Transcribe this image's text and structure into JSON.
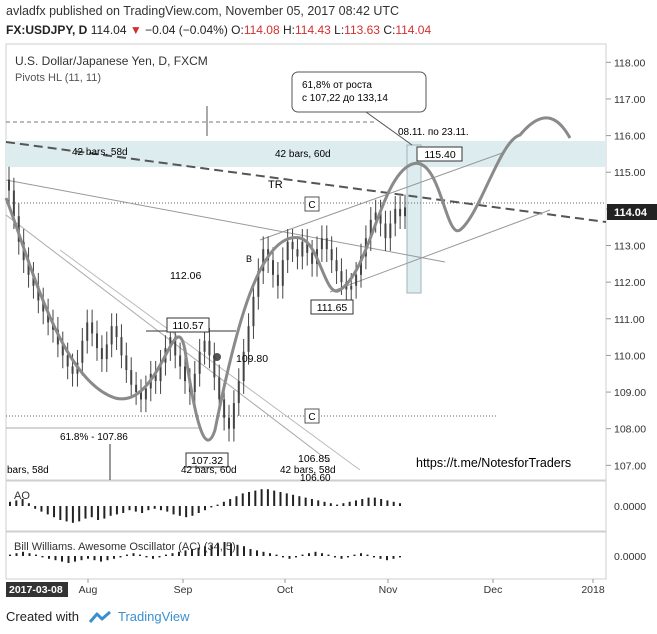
{
  "header": {
    "user": "avladfx",
    "published_text": "published on TradingView.com, November 05, 2017 08:42 UTC",
    "symbol": "FX:USDJPY, D",
    "last": "114.04",
    "change": "−0.04 (−0.04%)",
    "open_label": "O:",
    "open": "114.08",
    "high_label": "H:",
    "high": "114.43",
    "low_label": "L:",
    "low": "113.63",
    "close_label": "C:",
    "close": "114.04"
  },
  "colors": {
    "down": "#d32f2f",
    "candle": "#444444",
    "path": "#8a8a8a",
    "zone": "#dcecef",
    "brand": "#3a8fd1",
    "price_tag": "#222222"
  },
  "footer": {
    "created_with": "Created with",
    "brand": "TradingView"
  },
  "chart_data": {
    "type": "candlestick",
    "title": "U.S. Dollar/Japanese Yen, D, FXCM",
    "indicator": "Pivots HL (11, 11)",
    "ylim": [
      106.6,
      118.5
    ],
    "y_ticks": [
      "118.00",
      "117.00",
      "116.00",
      "115.00",
      "114.00",
      "113.00",
      "112.00",
      "111.00",
      "110.00",
      "109.00",
      "108.00",
      "107.00"
    ],
    "x_ticks": [
      "Aug",
      "Sep",
      "Oct",
      "Nov",
      "Dec",
      "2018"
    ],
    "x_axis_start_label": "2017-03-08",
    "last_price_tag": "114.04",
    "candle_closes": [
      114.5,
      113.8,
      113.1,
      112.6,
      112.2,
      111.9,
      111.5,
      111.2,
      110.9,
      110.7,
      110.3,
      110.0,
      109.7,
      109.5,
      109.8,
      110.4,
      110.9,
      110.6,
      110.2,
      109.9,
      110.3,
      110.8,
      110.5,
      110.0,
      109.6,
      109.2,
      109.0,
      108.8,
      109.1,
      109.5,
      109.3,
      109.8,
      110.2,
      110.5,
      110.0,
      109.7,
      109.3,
      109.0,
      109.5,
      110.1,
      110.4,
      110.0,
      109.4,
      108.8,
      108.3,
      108.0,
      108.7,
      109.3,
      110.1,
      110.8,
      111.6,
      112.3,
      112.9,
      112.6,
      112.2,
      111.9,
      112.6,
      113.1,
      112.9,
      112.7,
      113.1,
      112.8,
      112.5,
      112.9,
      113.2,
      112.9,
      112.6,
      112.3,
      112.0,
      111.8,
      111.9,
      112.2,
      112.7,
      113.2,
      113.7,
      113.9,
      113.6,
      113.2,
      113.6,
      114.0,
      113.8,
      114.04
    ],
    "pivot_labels": [
      "110.57",
      "109.80",
      "112.06",
      "107.32",
      "111.65",
      "115.40",
      "106.85"
    ],
    "annotations": {
      "fib_note_line1": "61,8% от роста",
      "fib_note_line2": "с 107,22 до 133,14",
      "range_label": "08.11. по 23.11.",
      "bars_58_left": "42 bars, 58d",
      "bars_60_top": "42 bars, 60d",
      "bars_60_bottom": "42 bars, 60d",
      "bars_58_bottom": "42 bars, 58d",
      "bars_58_edge": "bars, 58d",
      "tr": "TR",
      "c_top": "C",
      "c_bottom": "C",
      "b": "B",
      "fib_618": "61.8% - 107.86",
      "bottom_cut": "106.60",
      "link": "https://t.me/NotesforTraders"
    },
    "sub_panels": [
      {
        "name": "AO",
        "y_tick": "0.0000",
        "bars": [
          3,
          4,
          5,
          2,
          -2,
          -4,
          -6,
          -8,
          -10,
          -11,
          -12,
          -11,
          -9,
          -8,
          -10,
          -9,
          -7,
          -6,
          -5,
          -3,
          -4,
          -5,
          -3,
          -2,
          -3,
          -4,
          -6,
          -7,
          -8,
          -7,
          -5,
          -3,
          -1,
          1,
          3,
          5,
          7,
          9,
          10,
          11,
          12,
          12,
          11,
          10,
          9,
          8,
          7,
          6,
          5,
          4,
          3,
          2,
          1,
          2,
          3,
          4,
          5,
          6,
          6,
          5,
          4,
          3,
          2
        ]
      },
      {
        "name": "Bill Williams. Awesome Oscillator (AC) (34, 5)",
        "y_tick": "0.0000",
        "bars": [
          1,
          2,
          3,
          2,
          1,
          -1,
          -2,
          -3,
          -4,
          -5,
          -4,
          -3,
          -2,
          -3,
          -4,
          -3,
          -2,
          -1,
          1,
          2,
          1,
          -1,
          -2,
          -1,
          1,
          2,
          3,
          4,
          5,
          6,
          7,
          8,
          9,
          10,
          9,
          8,
          7,
          5,
          4,
          3,
          2,
          1,
          -1,
          -2,
          -1,
          1,
          2,
          3,
          2,
          1,
          -1,
          -2,
          -1,
          1,
          2,
          1,
          -1,
          -2,
          -3,
          -2,
          -1
        ]
      }
    ]
  }
}
